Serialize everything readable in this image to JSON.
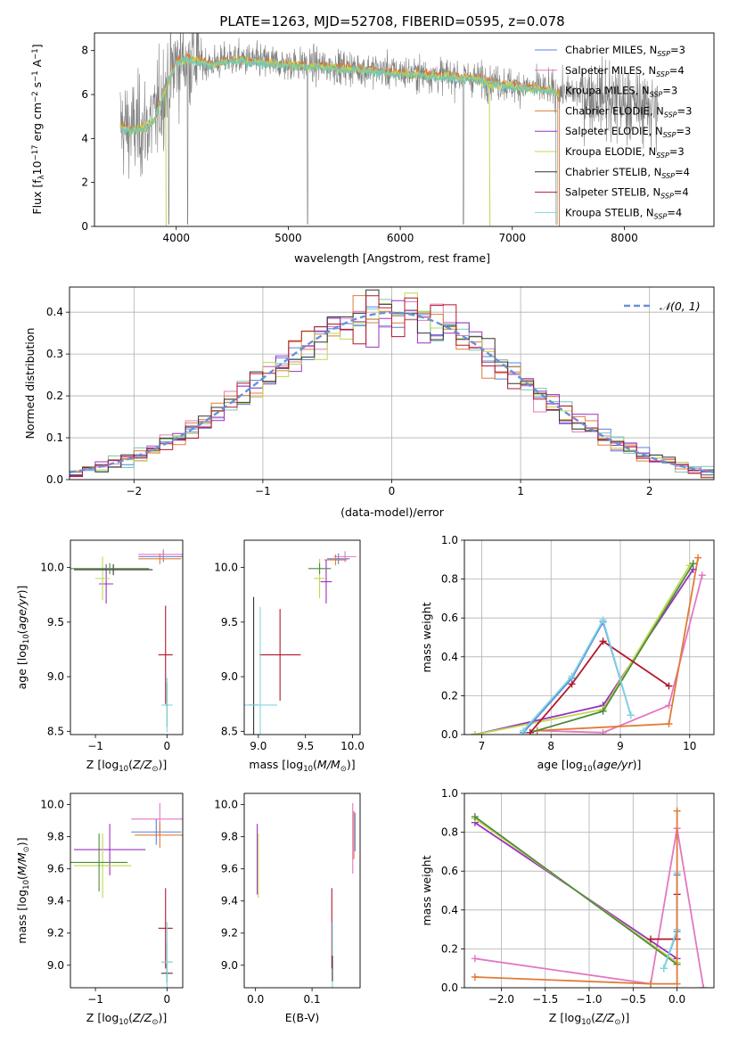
{
  "figure": {
    "title": "PLATE=1263, MJD=52708, FIBERID=0595, z=0.078"
  },
  "legend_spectrum": [
    {
      "label": "Chabrier MILES, N",
      "sub": "SSP",
      "suffix": "=3",
      "color": "#5b7fd9"
    },
    {
      "label": "Salpeter MILES, N",
      "sub": "SSP",
      "suffix": "=4",
      "color": "#e377c2"
    },
    {
      "label": "Kroupa MILES, N",
      "sub": "SSP",
      "suffix": "=3",
      "color": "#76c6b8"
    },
    {
      "label": "Chabrier ELODIE, N",
      "sub": "SSP",
      "suffix": "=3",
      "color": "#e07b39"
    },
    {
      "label": "Salpeter ELODIE, N",
      "sub": "SSP",
      "suffix": "=3",
      "color": "#9b30c0"
    },
    {
      "label": "Kroupa ELODIE, N",
      "sub": "SSP",
      "suffix": "=3",
      "color": "#bcd94e"
    },
    {
      "label": "Chabrier STELIB, N",
      "sub": "SSP",
      "suffix": "=4",
      "color": "#333333"
    },
    {
      "label": "Salpeter STELIB, N",
      "sub": "SSP",
      "suffix": "=4",
      "color": "#b2182b"
    },
    {
      "label": "Kroupa STELIB, N",
      "sub": "SSP",
      "suffix": "=4",
      "color": "#7fd6e0"
    }
  ],
  "model_colors": {
    "milesChab": "#5b7fd9",
    "milesSalp": "#e377c2",
    "milesKrou": "#76c6b8",
    "elodieChab": "#e07b39",
    "elodieSalp": "#9b30c0",
    "elodieKrou": "#bcd94e",
    "stelibChab": "#333333",
    "stelibSalp": "#b2182b",
    "stelibKrou": "#7fd6e0",
    "data": "#7f7f7f",
    "normal": "#6a8fd8",
    "green": "#4f8c3a"
  },
  "chart_data": [
    {
      "id": "spectrum",
      "type": "line",
      "xlabel": "wavelength [Angstrom, rest frame]",
      "ylabel": "Flux [f_λ 10^-17 erg cm^-2 s^-1 A^-1]",
      "xlim": [
        3270,
        8800
      ],
      "ylim": [
        0,
        8.8
      ],
      "xticks": [
        4000,
        5000,
        6000,
        7000,
        8000
      ],
      "yticks": [
        0,
        2,
        4,
        6,
        8
      ],
      "grid": false,
      "legend": "right",
      "continuum": {
        "x": [
          3500,
          3600,
          3700,
          3800,
          3900,
          4000,
          4100,
          4300,
          4500,
          4800,
          5000,
          5300,
          5600,
          6000,
          6300,
          6600,
          6900,
          7200,
          7500,
          7800,
          8100,
          8300
        ],
        "y": [
          4.6,
          4.4,
          4.5,
          4.8,
          6.3,
          7.5,
          7.7,
          7.4,
          7.6,
          7.5,
          7.4,
          7.3,
          7.2,
          7.0,
          6.9,
          6.8,
          6.5,
          6.3,
          6.1,
          5.9,
          5.6,
          5.4
        ]
      }
    },
    {
      "id": "residuals",
      "type": "line",
      "xlabel": "(data-model)/error",
      "ylabel": "Normed distribution",
      "xlim": [
        -2.5,
        2.5
      ],
      "ylim": [
        0,
        0.46
      ],
      "xticks": [
        -2,
        -1,
        0,
        1,
        2
      ],
      "yticks": [
        0.0,
        0.1,
        0.2,
        0.3,
        0.4
      ],
      "grid": true,
      "legend": "top-right",
      "normal_label": "𝒩(0, 1)",
      "bins": {
        "start": -2.5,
        "width": 0.1,
        "count": 50
      }
    },
    {
      "id": "age-vs-Z",
      "type": "scatter",
      "xlabel": "Z [log10(Z/Z⊙)]",
      "ylabel": "age [log10(age/yr)]",
      "xlim": [
        -1.35,
        0.22
      ],
      "ylim": [
        8.47,
        10.25
      ],
      "xticks": [
        -1,
        0
      ],
      "yticks": [
        8.5,
        9.0,
        9.5,
        10.0
      ],
      "points": [
        {
          "m": "milesChab",
          "x": -0.05,
          "y": 10.1,
          "ex": 0.35,
          "ey": 0.05
        },
        {
          "m": "milesSalp",
          "x": -0.05,
          "y": 10.12,
          "ex": 0.35,
          "ey": 0.05
        },
        {
          "m": "elodieChab",
          "x": -0.1,
          "y": 10.08,
          "ex": 0.3,
          "ey": 0.05
        },
        {
          "m": "elodieSalp",
          "x": -0.85,
          "y": 9.85,
          "ex": 0.1,
          "ey": 0.18
        },
        {
          "m": "elodieKrou",
          "x": -0.9,
          "y": 9.9,
          "ex": 0.1,
          "ey": 0.2
        },
        {
          "m": "stelibChab",
          "x": -0.75,
          "y": 9.98,
          "ex": 0.55,
          "ey": 0.05
        },
        {
          "m": "green",
          "x": -0.8,
          "y": 9.99,
          "ex": 0.55,
          "ey": 0.05
        },
        {
          "m": "stelibSalp",
          "x": -0.02,
          "y": 9.2,
          "ex": 0.1,
          "ey": 0.45
        },
        {
          "m": "stelibKrou",
          "x": 0.0,
          "y": 8.74,
          "ex": 0.08,
          "ey": 0.25
        },
        {
          "m": "milesKrou",
          "x": 0.0,
          "y": 8.74,
          "ex": 0.02,
          "ey": 0.2
        }
      ]
    },
    {
      "id": "age-vs-mass",
      "type": "scatter",
      "xlabel": "mass [log10(M/M⊙)]",
      "ylabel": "",
      "xlim": [
        8.85,
        10.08
      ],
      "ylim": [
        8.47,
        10.25
      ],
      "xticks": [
        9.0,
        9.5,
        10.0
      ],
      "yticks": [
        8.5,
        9.0,
        9.5,
        10.0
      ],
      "points": [
        {
          "m": "milesChab",
          "x": 9.85,
          "y": 10.08,
          "ex": 0.12,
          "ey": 0.05
        },
        {
          "m": "milesSalp",
          "x": 9.92,
          "y": 10.1,
          "ex": 0.12,
          "ey": 0.05
        },
        {
          "m": "elodieChab",
          "x": 9.82,
          "y": 10.07,
          "ex": 0.12,
          "ey": 0.05
        },
        {
          "m": "elodieSalp",
          "x": 9.72,
          "y": 9.87,
          "ex": 0.06,
          "ey": 0.2
        },
        {
          "m": "elodieKrou",
          "x": 9.65,
          "y": 9.9,
          "ex": 0.06,
          "ey": 0.18
        },
        {
          "m": "green",
          "x": 9.65,
          "y": 9.99,
          "ex": 0.12,
          "ey": 0.05
        },
        {
          "m": "stelibSalp",
          "x": 9.23,
          "y": 9.2,
          "ex": 0.22,
          "ey": 0.42
        },
        {
          "m": "stelibChab",
          "x": 8.95,
          "y": 8.74,
          "ex": 0.05,
          "ey": 0.99
        },
        {
          "m": "stelibKrou",
          "x": 9.02,
          "y": 8.74,
          "ex": 0.18,
          "ey": 0.9
        }
      ]
    },
    {
      "id": "weight-vs-age",
      "type": "line",
      "xlabel": "age [log10(age/yr)]",
      "ylabel": "mass weight",
      "xlim": [
        6.75,
        10.35
      ],
      "ylim": [
        0,
        1
      ],
      "xticks": [
        7,
        8,
        9,
        10
      ],
      "yticks": [
        0.0,
        0.2,
        0.4,
        0.6,
        0.8,
        1.0
      ],
      "grid": true,
      "series": [
        {
          "m": "milesSalp",
          "x": [
            7.8,
            8.75,
            9.7,
            10.18
          ],
          "y": [
            0.02,
            0.01,
            0.15,
            0.82
          ]
        },
        {
          "m": "elodieChab",
          "x": [
            7.8,
            9.7,
            10.12
          ],
          "y": [
            0.02,
            0.055,
            0.91
          ]
        },
        {
          "m": "elodieSalp",
          "x": [
            6.9,
            8.75,
            10.05
          ],
          "y": [
            0.0,
            0.15,
            0.85
          ]
        },
        {
          "m": "elodieKrou",
          "x": [
            6.9,
            8.75,
            10.0
          ],
          "y": [
            0.0,
            0.13,
            0.87
          ]
        },
        {
          "m": "green",
          "x": [
            7.7,
            8.75,
            10.05
          ],
          "y": [
            0.01,
            0.12,
            0.88
          ]
        },
        {
          "m": "stelibSalp",
          "x": [
            7.7,
            8.3,
            8.75,
            9.7
          ],
          "y": [
            0.01,
            0.26,
            0.48,
            0.25
          ]
        },
        {
          "m": "milesChab",
          "x": [
            7.6,
            8.3,
            8.75,
            9.15
          ],
          "y": [
            0.01,
            0.29,
            0.58,
            0.1
          ]
        },
        {
          "m": "stelibKrou",
          "x": [
            7.6,
            8.3,
            8.75,
            9.15
          ],
          "y": [
            0.02,
            0.3,
            0.59,
            0.1
          ]
        }
      ]
    },
    {
      "id": "mass-vs-Z",
      "type": "scatter",
      "xlabel": "Z [log10(Z/Z⊙)]",
      "ylabel": "mass [log10(M/M⊙)]",
      "xlim": [
        -1.35,
        0.22
      ],
      "ylim": [
        8.86,
        10.07
      ],
      "xticks": [
        -1,
        0
      ],
      "yticks": [
        9.0,
        9.2,
        9.4,
        9.6,
        9.8,
        10.0
      ],
      "points": [
        {
          "m": "milesSalp",
          "x": -0.1,
          "y": 9.91,
          "ex": 0.4,
          "ey": 0.1
        },
        {
          "m": "milesChab",
          "x": -0.15,
          "y": 9.83,
          "ex": 0.35,
          "ey": 0.08
        },
        {
          "m": "elodieChab",
          "x": -0.1,
          "y": 9.81,
          "ex": 0.35,
          "ey": 0.08
        },
        {
          "m": "elodieSalp",
          "x": -0.8,
          "y": 9.72,
          "ex": 0.5,
          "ey": 0.16
        },
        {
          "m": "elodieKrou",
          "x": -0.9,
          "y": 9.62,
          "ex": 0.4,
          "ey": 0.2
        },
        {
          "m": "green",
          "x": -0.95,
          "y": 9.64,
          "ex": 0.4,
          "ey": 0.18
        },
        {
          "m": "stelibSalp",
          "x": -0.02,
          "y": 9.23,
          "ex": 0.1,
          "ey": 0.25
        },
        {
          "m": "milesKrou",
          "x": 0.0,
          "y": 9.02,
          "ex": 0.08,
          "ey": 0.12
        },
        {
          "m": "stelibChab",
          "x": 0.0,
          "y": 8.95,
          "ex": 0.08,
          "ey": 0.06
        },
        {
          "m": "stelibKrou",
          "x": 0.0,
          "y": 9.02,
          "ex": 0.02,
          "ey": 0.25
        }
      ]
    },
    {
      "id": "mass-vs-EBV",
      "type": "scatter",
      "xlabel": "E(B-V)",
      "ylabel": "",
      "xlim": [
        -0.02,
        0.185
      ],
      "ylim": [
        8.86,
        10.07
      ],
      "xticks": [
        0.0,
        0.1
      ],
      "yticks": [
        9.0,
        9.2,
        9.4,
        9.6,
        9.8,
        10.0
      ],
      "points": [
        {
          "m": "elodieSalp",
          "x": 0.003,
          "y": 9.66,
          "ex": 0,
          "ey": 0.22
        },
        {
          "m": "elodieKrou",
          "x": 0.005,
          "y": 9.62,
          "ex": 0,
          "ey": 0.2
        },
        {
          "m": "milesSalp",
          "x": 0.172,
          "y": 9.79,
          "ex": 0,
          "ey": 0.22
        },
        {
          "m": "elodieChab",
          "x": 0.174,
          "y": 9.81,
          "ex": 0,
          "ey": 0.15
        },
        {
          "m": "milesChab",
          "x": 0.176,
          "y": 9.83,
          "ex": 0,
          "ey": 0.12
        },
        {
          "m": "stelibSalp",
          "x": 0.135,
          "y": 9.23,
          "ex": 0,
          "ey": 0.25
        },
        {
          "m": "stelibKrou",
          "x": 0.136,
          "y": 9.02,
          "ex": 0,
          "ey": 0.25
        },
        {
          "m": "stelibChab",
          "x": 0.136,
          "y": 8.98,
          "ex": 0,
          "ey": 0.08
        }
      ]
    },
    {
      "id": "weight-vs-Z",
      "type": "line",
      "xlabel": "Z [log10(Z/Z⊙)]",
      "ylabel": "mass weight",
      "xlim": [
        -2.42,
        0.42
      ],
      "ylim": [
        0,
        1
      ],
      "xticks": [
        -2.0,
        -1.5,
        -1.0,
        -0.5,
        0.0
      ],
      "yticks": [
        0.0,
        0.2,
        0.4,
        0.6,
        0.8,
        1.0
      ],
      "grid": true,
      "series": [
        {
          "m": "milesSalp",
          "x": [
            -2.3,
            -0.3,
            0.0,
            0.3
          ],
          "y": [
            0.15,
            0.02,
            0.82,
            0.0
          ]
        },
        {
          "m": "elodieSalp",
          "x": [
            -2.3,
            0.0
          ],
          "y": [
            0.85,
            0.15
          ]
        },
        {
          "m": "elodieKrou",
          "x": [
            -2.3,
            0.0
          ],
          "y": [
            0.87,
            0.13
          ]
        },
        {
          "m": "green",
          "x": [
            -2.3,
            0.0
          ],
          "y": [
            0.88,
            0.12
          ]
        },
        {
          "m": "stelibSalp",
          "x": [
            -0.3,
            0.0,
            0.0
          ],
          "y": [
            0.25,
            0.25,
            0.48
          ]
        },
        {
          "m": "milesChab",
          "x": [
            -0.15,
            0.0,
            0.0
          ],
          "y": [
            0.1,
            0.29,
            0.58
          ]
        },
        {
          "m": "stelibKrou",
          "x": [
            -0.15,
            0.0,
            0.0
          ],
          "y": [
            0.1,
            0.3,
            0.59
          ]
        },
        {
          "m": "elodieChab",
          "x": [
            -2.3,
            -0.3,
            0.0,
            0.0
          ],
          "y": [
            0.055,
            0.02,
            0.02,
            0.91
          ]
        }
      ]
    }
  ]
}
